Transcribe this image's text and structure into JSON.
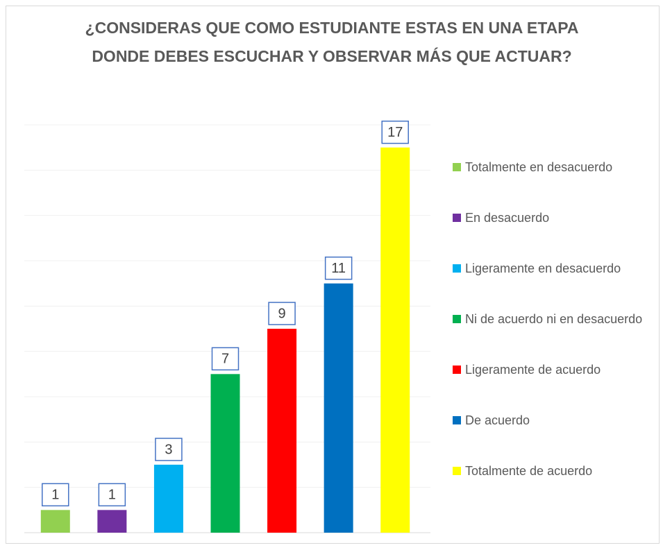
{
  "chart_data": {
    "type": "bar",
    "title": "¿CONSIDERAS QUE COMO ESTUDIANTE ESTAS EN UNA ETAPA DONDE DEBES ESCUCHAR Y OBSERVAR MÁS QUE ACTUAR?",
    "categories": [
      "Totalmente en desacuerdo",
      "En desacuerdo",
      "Ligeramente en desacuerdo",
      "Ni de acuerdo ni en desacuerdo",
      "Ligeramente de acuerdo",
      "De acuerdo",
      "Totalmente de acuerdo"
    ],
    "values": [
      1,
      1,
      3,
      7,
      9,
      11,
      17
    ],
    "colors": [
      "#92d050",
      "#7030a0",
      "#00b0f0",
      "#00b050",
      "#ff0000",
      "#0070c0",
      "#ffff00"
    ],
    "ylim": [
      0,
      18
    ],
    "yticks": [
      0,
      2,
      4,
      6,
      8,
      10,
      12,
      14,
      16,
      18
    ],
    "grid": true,
    "legend": "right"
  }
}
